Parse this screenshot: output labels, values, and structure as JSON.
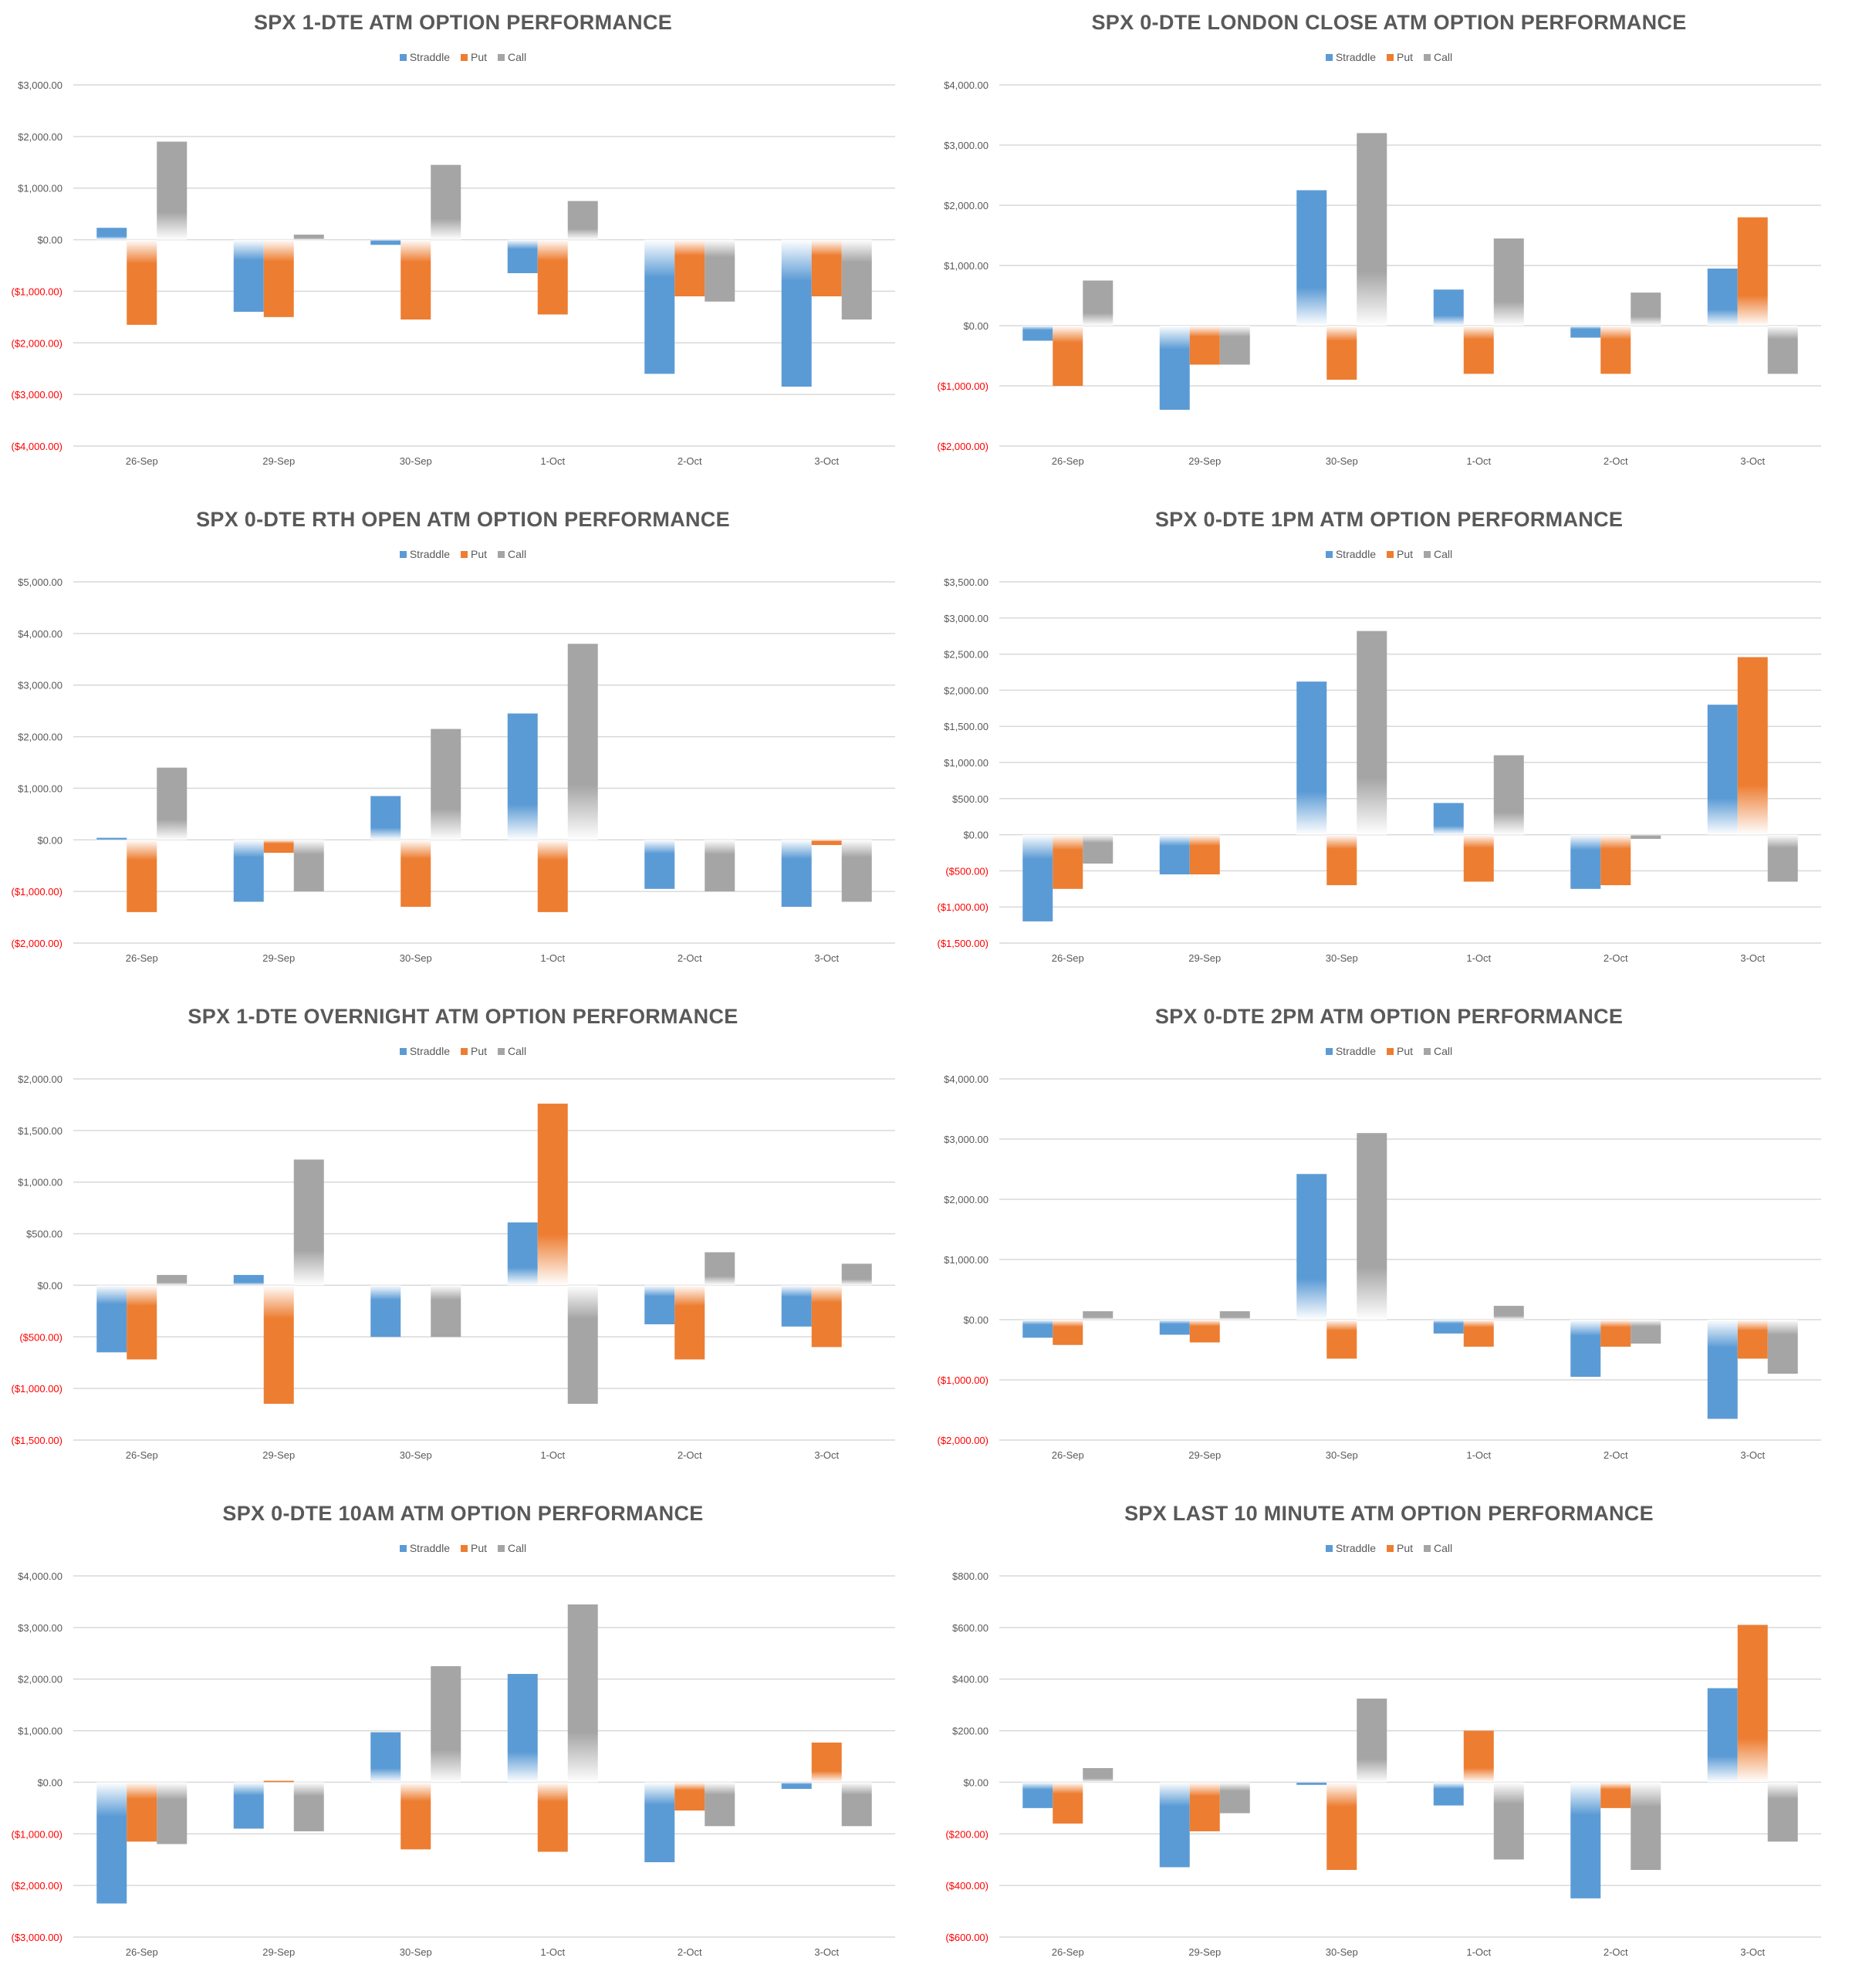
{
  "colors": {
    "Straddle": "#5B9BD5",
    "Put": "#ED7D31",
    "Call": "#A5A5A5",
    "grid": "#D9D9D9",
    "tick": "#595959",
    "negative_tick": "#FF0000"
  },
  "chart_data": [
    {
      "type": "bar",
      "title": "SPX 1-DTE ATM OPTION PERFORMANCE",
      "categories": [
        "26-Sep",
        "29-Sep",
        "30-Sep",
        "1-Oct",
        "2-Oct",
        "3-Oct"
      ],
      "ylim": [
        -4000,
        3000
      ],
      "yticks": [
        3000,
        2000,
        1000,
        0,
        -1000,
        -2000,
        -3000,
        -4000
      ],
      "ytick_labels": [
        "$3,000.00",
        "$2,000.00",
        "$1,000.00",
        "$0.00",
        "($1,000.00)",
        "($2,000.00)",
        "($3,000.00)",
        "($4,000.00)"
      ],
      "legend": "top-center",
      "grid": true,
      "series": [
        {
          "name": "Straddle",
          "values": [
            230,
            -1400,
            -100,
            -650,
            -2600,
            -2850
          ]
        },
        {
          "name": "Put",
          "values": [
            -1650,
            -1500,
            -1550,
            -1450,
            -1100,
            -1100
          ]
        },
        {
          "name": "Call",
          "values": [
            1900,
            100,
            1450,
            750,
            -1200,
            -1550
          ]
        }
      ]
    },
    {
      "type": "bar",
      "title": "SPX 0-DTE  LONDON CLOSE ATM OPTION PERFORMANCE",
      "categories": [
        "26-Sep",
        "29-Sep",
        "30-Sep",
        "1-Oct",
        "2-Oct",
        "3-Oct"
      ],
      "ylim": [
        -2000,
        4000
      ],
      "yticks": [
        4000,
        3000,
        2000,
        1000,
        0,
        -1000,
        -2000
      ],
      "ytick_labels": [
        "$4,000.00",
        "$3,000.00",
        "$2,000.00",
        "$1,000.00",
        "$0.00",
        "($1,000.00)",
        "($2,000.00)"
      ],
      "legend": "top-center",
      "grid": true,
      "series": [
        {
          "name": "Straddle",
          "values": [
            -250,
            -1400,
            2250,
            600,
            -200,
            950
          ]
        },
        {
          "name": "Put",
          "values": [
            -1000,
            -650,
            -900,
            -800,
            -800,
            1800
          ]
        },
        {
          "name": "Call",
          "values": [
            750,
            -650,
            3200,
            1450,
            550,
            -800
          ]
        }
      ]
    },
    {
      "type": "bar",
      "title": "SPX 0-DTE RTH OPEN ATM OPTION PERFORMANCE",
      "categories": [
        "26-Sep",
        "29-Sep",
        "30-Sep",
        "1-Oct",
        "2-Oct",
        "3-Oct"
      ],
      "ylim": [
        -2000,
        5000
      ],
      "yticks": [
        5000,
        4000,
        3000,
        2000,
        1000,
        0,
        -1000,
        -2000
      ],
      "ytick_labels": [
        "$5,000.00",
        "$4,000.00",
        "$3,000.00",
        "$2,000.00",
        "$1,000.00",
        "$0.00",
        "($1,000.00)",
        "($2,000.00)"
      ],
      "legend": "top-center",
      "grid": true,
      "series": [
        {
          "name": "Straddle",
          "values": [
            40,
            -1200,
            850,
            2450,
            -950,
            -1300
          ]
        },
        {
          "name": "Put",
          "values": [
            -1400,
            -250,
            -1300,
            -1400,
            0,
            -100
          ]
        },
        {
          "name": "Call",
          "values": [
            1400,
            -1000,
            2150,
            3800,
            -1000,
            -1200
          ]
        }
      ]
    },
    {
      "type": "bar",
      "title": "SPX 0-DTE 1PM ATM OPTION PERFORMANCE",
      "categories": [
        "26-Sep",
        "29-Sep",
        "30-Sep",
        "1-Oct",
        "2-Oct",
        "3-Oct"
      ],
      "ylim": [
        -1500,
        3500
      ],
      "yticks": [
        3500,
        3000,
        2500,
        2000,
        1500,
        1000,
        500,
        0,
        -500,
        -1000,
        -1500
      ],
      "ytick_labels": [
        "$3,500.00",
        "$3,000.00",
        "$2,500.00",
        "$2,000.00",
        "$1,500.00",
        "$1,000.00",
        "$500.00",
        "$0.00",
        "($500.00)",
        "($1,000.00)",
        "($1,500.00)"
      ],
      "legend": "top-center",
      "grid": true,
      "series": [
        {
          "name": "Straddle",
          "values": [
            -1200,
            -550,
            2120,
            440,
            -750,
            1800
          ]
        },
        {
          "name": "Put",
          "values": [
            -750,
            -550,
            -700,
            -650,
            -700,
            2460
          ]
        },
        {
          "name": "Call",
          "values": [
            -400,
            0,
            2820,
            1100,
            -60,
            -650
          ]
        }
      ]
    },
    {
      "type": "bar",
      "title": "SPX 1-DTE OVERNIGHT ATM OPTION PERFORMANCE",
      "categories": [
        "26-Sep",
        "29-Sep",
        "30-Sep",
        "1-Oct",
        "2-Oct",
        "3-Oct"
      ],
      "ylim": [
        -1500,
        2000
      ],
      "yticks": [
        2000,
        1500,
        1000,
        500,
        0,
        -500,
        -1000,
        -1500
      ],
      "ytick_labels": [
        "$2,000.00",
        "$1,500.00",
        "$1,000.00",
        "$500.00",
        "$0.00",
        "($500.00)",
        "($1,000.00)",
        "($1,500.00)"
      ],
      "legend": "top-center",
      "grid": true,
      "series": [
        {
          "name": "Straddle",
          "values": [
            -650,
            100,
            -500,
            610,
            -380,
            -400
          ]
        },
        {
          "name": "Put",
          "values": [
            -720,
            -1150,
            0,
            1760,
            -720,
            -600
          ]
        },
        {
          "name": "Call",
          "values": [
            100,
            1220,
            -500,
            -1150,
            320,
            210
          ]
        }
      ]
    },
    {
      "type": "bar",
      "title": "SPX 0-DTE 2PM ATM OPTION PERFORMANCE",
      "categories": [
        "26-Sep",
        "29-Sep",
        "30-Sep",
        "1-Oct",
        "2-Oct",
        "3-Oct"
      ],
      "ylim": [
        -2000,
        4000
      ],
      "yticks": [
        4000,
        3000,
        2000,
        1000,
        0,
        -1000,
        -2000
      ],
      "ytick_labels": [
        "$4,000.00",
        "$3,000.00",
        "$2,000.00",
        "$1,000.00",
        "$0.00",
        "($1,000.00)",
        "($2,000.00)"
      ],
      "legend": "top-center",
      "grid": true,
      "series": [
        {
          "name": "Straddle",
          "values": [
            -300,
            -250,
            2420,
            -230,
            -950,
            -1650
          ]
        },
        {
          "name": "Put",
          "values": [
            -420,
            -380,
            -650,
            -450,
            -450,
            -650
          ]
        },
        {
          "name": "Call",
          "values": [
            140,
            140,
            3100,
            230,
            -400,
            -900
          ]
        }
      ]
    },
    {
      "type": "bar",
      "title": "SPX 0-DTE 10AM ATM OPTION PERFORMANCE",
      "categories": [
        "26-Sep",
        "29-Sep",
        "30-Sep",
        "1-Oct",
        "2-Oct",
        "3-Oct"
      ],
      "ylim": [
        -3000,
        4000
      ],
      "yticks": [
        4000,
        3000,
        2000,
        1000,
        0,
        -1000,
        -2000,
        -3000
      ],
      "ytick_labels": [
        "$4,000.00",
        "$3,000.00",
        "$2,000.00",
        "$1,000.00",
        "$0.00",
        "($1,000.00)",
        "($2,000.00)",
        "($3,000.00)"
      ],
      "legend": "top-center",
      "grid": true,
      "series": [
        {
          "name": "Straddle",
          "values": [
            -2350,
            -900,
            970,
            2100,
            -1550,
            -130
          ]
        },
        {
          "name": "Put",
          "values": [
            -1150,
            30,
            -1300,
            -1350,
            -550,
            770
          ]
        },
        {
          "name": "Call",
          "values": [
            -1200,
            -950,
            2250,
            3450,
            -850,
            -850
          ]
        }
      ]
    },
    {
      "type": "bar",
      "title": "SPX LAST 10 MINUTE ATM OPTION PERFORMANCE",
      "categories": [
        "26-Sep",
        "29-Sep",
        "30-Sep",
        "1-Oct",
        "2-Oct",
        "3-Oct"
      ],
      "ylim": [
        -600,
        800
      ],
      "yticks": [
        800,
        600,
        400,
        200,
        0,
        -200,
        -400,
        -600
      ],
      "ytick_labels": [
        "$800.00",
        "$600.00",
        "$400.00",
        "$200.00",
        "$0.00",
        "($200.00)",
        "($400.00)",
        "($600.00)"
      ],
      "legend": "top-center",
      "grid": true,
      "series": [
        {
          "name": "Straddle",
          "values": [
            -100,
            -330,
            -10,
            -90,
            -450,
            365
          ]
        },
        {
          "name": "Put",
          "values": [
            -160,
            -190,
            -340,
            200,
            -100,
            610
          ]
        },
        {
          "name": "Call",
          "values": [
            55,
            -120,
            325,
            -300,
            -340,
            -230
          ]
        }
      ]
    }
  ]
}
